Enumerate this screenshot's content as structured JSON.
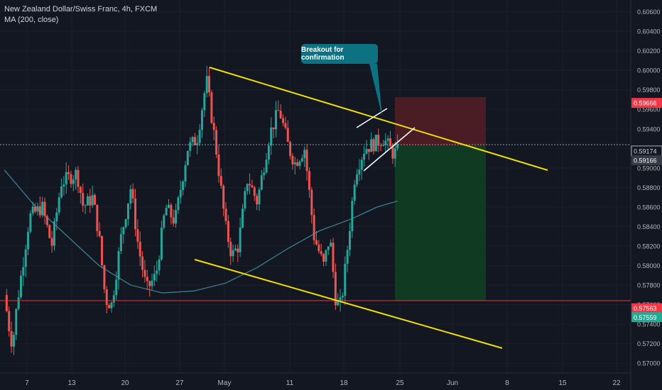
{
  "legend": {
    "symbol_line": "New Zealand Dollar/Swiss Franc, 4h, FXCM",
    "indicator_line": "MA (200, close)"
  },
  "annotation": {
    "text": "Breakout for confirmation"
  },
  "chart_data": {
    "type": "candlestick",
    "title": "New Zealand Dollar/Swiss Franc, 4h, FXCM",
    "indicator": "MA (200, close)",
    "x_ticks": [
      "7",
      "13",
      "20",
      "27",
      "May",
      "11",
      "18",
      "25",
      "Jun",
      "8",
      "15",
      "22"
    ],
    "y_ticks": [
      "0.60600",
      "0.60400",
      "0.60200",
      "0.60000",
      "0.59800",
      "0.59600",
      "0.59400",
      "0.59200",
      "0.59000",
      "0.58800",
      "0.58600",
      "0.58400",
      "0.58200",
      "0.58000",
      "0.57800",
      "0.57600",
      "0.57400",
      "0.57200",
      "0.57000"
    ],
    "ylim": [
      0.569,
      0.6072
    ],
    "price_labels": [
      {
        "value": "0.59666",
        "role": "stop-loss",
        "color": "#f23645"
      },
      {
        "value": "0.59174",
        "role": "last-price",
        "color": "#131722"
      },
      {
        "value": "0.59166",
        "role": "entry",
        "color": "#363a45"
      },
      {
        "value": "0.57563",
        "role": "horizontal-level",
        "color": "#f23645"
      },
      {
        "value": "0.57559",
        "role": "take-profit",
        "color": "#22ab94"
      }
    ],
    "key_prices": {
      "stop_loss": 0.59666,
      "entry": 0.59166,
      "take_profit": 0.57559,
      "last_price": 0.59174,
      "horizontal_level": 0.57563
    },
    "price_path": [
      {
        "t": 0.0,
        "p": 0.577
      },
      {
        "t": 0.008,
        "p": 0.5735
      },
      {
        "t": 0.013,
        "p": 0.5718
      },
      {
        "t": 0.02,
        "p": 0.576
      },
      {
        "t": 0.04,
        "p": 0.585
      },
      {
        "t": 0.06,
        "p": 0.586
      },
      {
        "t": 0.075,
        "p": 0.582
      },
      {
        "t": 0.09,
        "p": 0.5885
      },
      {
        "t": 0.115,
        "p": 0.5895
      },
      {
        "t": 0.125,
        "p": 0.586
      },
      {
        "t": 0.14,
        "p": 0.587
      },
      {
        "t": 0.15,
        "p": 0.583
      },
      {
        "t": 0.16,
        "p": 0.5765
      },
      {
        "t": 0.17,
        "p": 0.576
      },
      {
        "t": 0.185,
        "p": 0.583
      },
      {
        "t": 0.2,
        "p": 0.588
      },
      {
        "t": 0.212,
        "p": 0.582
      },
      {
        "t": 0.225,
        "p": 0.5775
      },
      {
        "t": 0.24,
        "p": 0.579
      },
      {
        "t": 0.255,
        "p": 0.586
      },
      {
        "t": 0.27,
        "p": 0.5845
      },
      {
        "t": 0.29,
        "p": 0.592
      },
      {
        "t": 0.305,
        "p": 0.593
      },
      {
        "t": 0.32,
        "p": 0.599
      },
      {
        "t": 0.335,
        "p": 0.592
      },
      {
        "t": 0.35,
        "p": 0.584
      },
      {
        "t": 0.36,
        "p": 0.581
      },
      {
        "t": 0.37,
        "p": 0.582
      },
      {
        "t": 0.385,
        "p": 0.589
      },
      {
        "t": 0.4,
        "p": 0.5865
      },
      {
        "t": 0.42,
        "p": 0.5935
      },
      {
        "t": 0.435,
        "p": 0.596
      },
      {
        "t": 0.45,
        "p": 0.592
      },
      {
        "t": 0.46,
        "p": 0.5905
      },
      {
        "t": 0.475,
        "p": 0.592
      },
      {
        "t": 0.49,
        "p": 0.583
      },
      {
        "t": 0.505,
        "p": 0.58
      },
      {
        "t": 0.515,
        "p": 0.583
      },
      {
        "t": 0.525,
        "p": 0.576
      },
      {
        "t": 0.533,
        "p": 0.576
      },
      {
        "t": 0.545,
        "p": 0.583
      },
      {
        "t": 0.555,
        "p": 0.5895
      },
      {
        "t": 0.57,
        "p": 0.592
      },
      {
        "t": 0.585,
        "p": 0.5925
      },
      {
        "t": 0.6,
        "p": 0.593
      },
      {
        "t": 0.615,
        "p": 0.5915
      },
      {
        "t": 0.622,
        "p": 0.5917
      }
    ],
    "moving_average": [
      {
        "t": 0.0,
        "p": 0.5898
      },
      {
        "t": 0.05,
        "p": 0.586
      },
      {
        "t": 0.1,
        "p": 0.583
      },
      {
        "t": 0.15,
        "p": 0.58
      },
      {
        "t": 0.2,
        "p": 0.578
      },
      {
        "t": 0.25,
        "p": 0.5772
      },
      {
        "t": 0.3,
        "p": 0.5774
      },
      {
        "t": 0.35,
        "p": 0.5782
      },
      {
        "t": 0.4,
        "p": 0.5798
      },
      {
        "t": 0.45,
        "p": 0.5818
      },
      {
        "t": 0.5,
        "p": 0.5836
      },
      {
        "t": 0.55,
        "p": 0.5848
      },
      {
        "t": 0.59,
        "p": 0.586
      },
      {
        "t": 0.622,
        "p": 0.5866
      }
    ]
  },
  "colors": {
    "background": "#131722",
    "bull": "#26a69a",
    "bear": "#ef5350",
    "trendline": "#f0e000",
    "ma": "#3c7f8f",
    "stop_zone": "#4a1c24",
    "target_zone": "#113a22",
    "level_line": "#e53935"
  }
}
